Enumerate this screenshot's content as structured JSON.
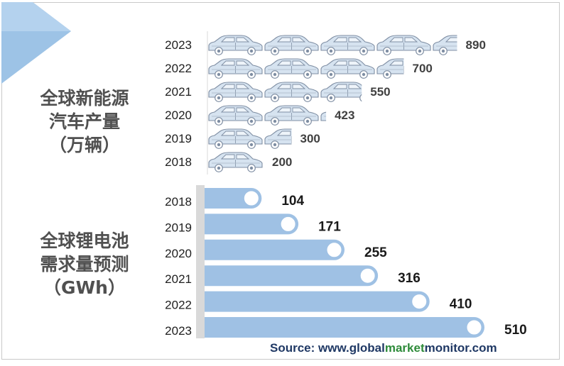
{
  "titles": {
    "production": [
      "全球新能源",
      "汽车产量",
      "（万辆）"
    ],
    "battery": [
      "全球锂电池",
      "需求量预测",
      "（GWh）"
    ]
  },
  "source": {
    "prefix": "Source: www.",
    "part1": "global",
    "part2": "market",
    "part3": "monitor",
    "suffix": ".com"
  },
  "colors": {
    "car_body": "#d6e3f0",
    "car_outline": "#7f8ea3",
    "bar_fill": "#9fc1e4",
    "bar_axis": "#d9d9d9",
    "value_text": "#404040",
    "arrow": "#9dc3e6",
    "source_blue": "#1f3864",
    "source_green": "#2e8b3a"
  },
  "chart_data": [
    {
      "type": "bar",
      "orientation": "horizontal",
      "marker": "car-pictogram",
      "categories": [
        "2023",
        "2022",
        "2021",
        "2020",
        "2019",
        "2018"
      ],
      "values": [
        890,
        700,
        550,
        423,
        300,
        200
      ]
    },
    {
      "type": "bar",
      "orientation": "horizontal",
      "categories": [
        "2018",
        "2019",
        "2020",
        "2021",
        "2022",
        "2023"
      ],
      "values": [
        104,
        171,
        255,
        316,
        410,
        510
      ]
    }
  ]
}
